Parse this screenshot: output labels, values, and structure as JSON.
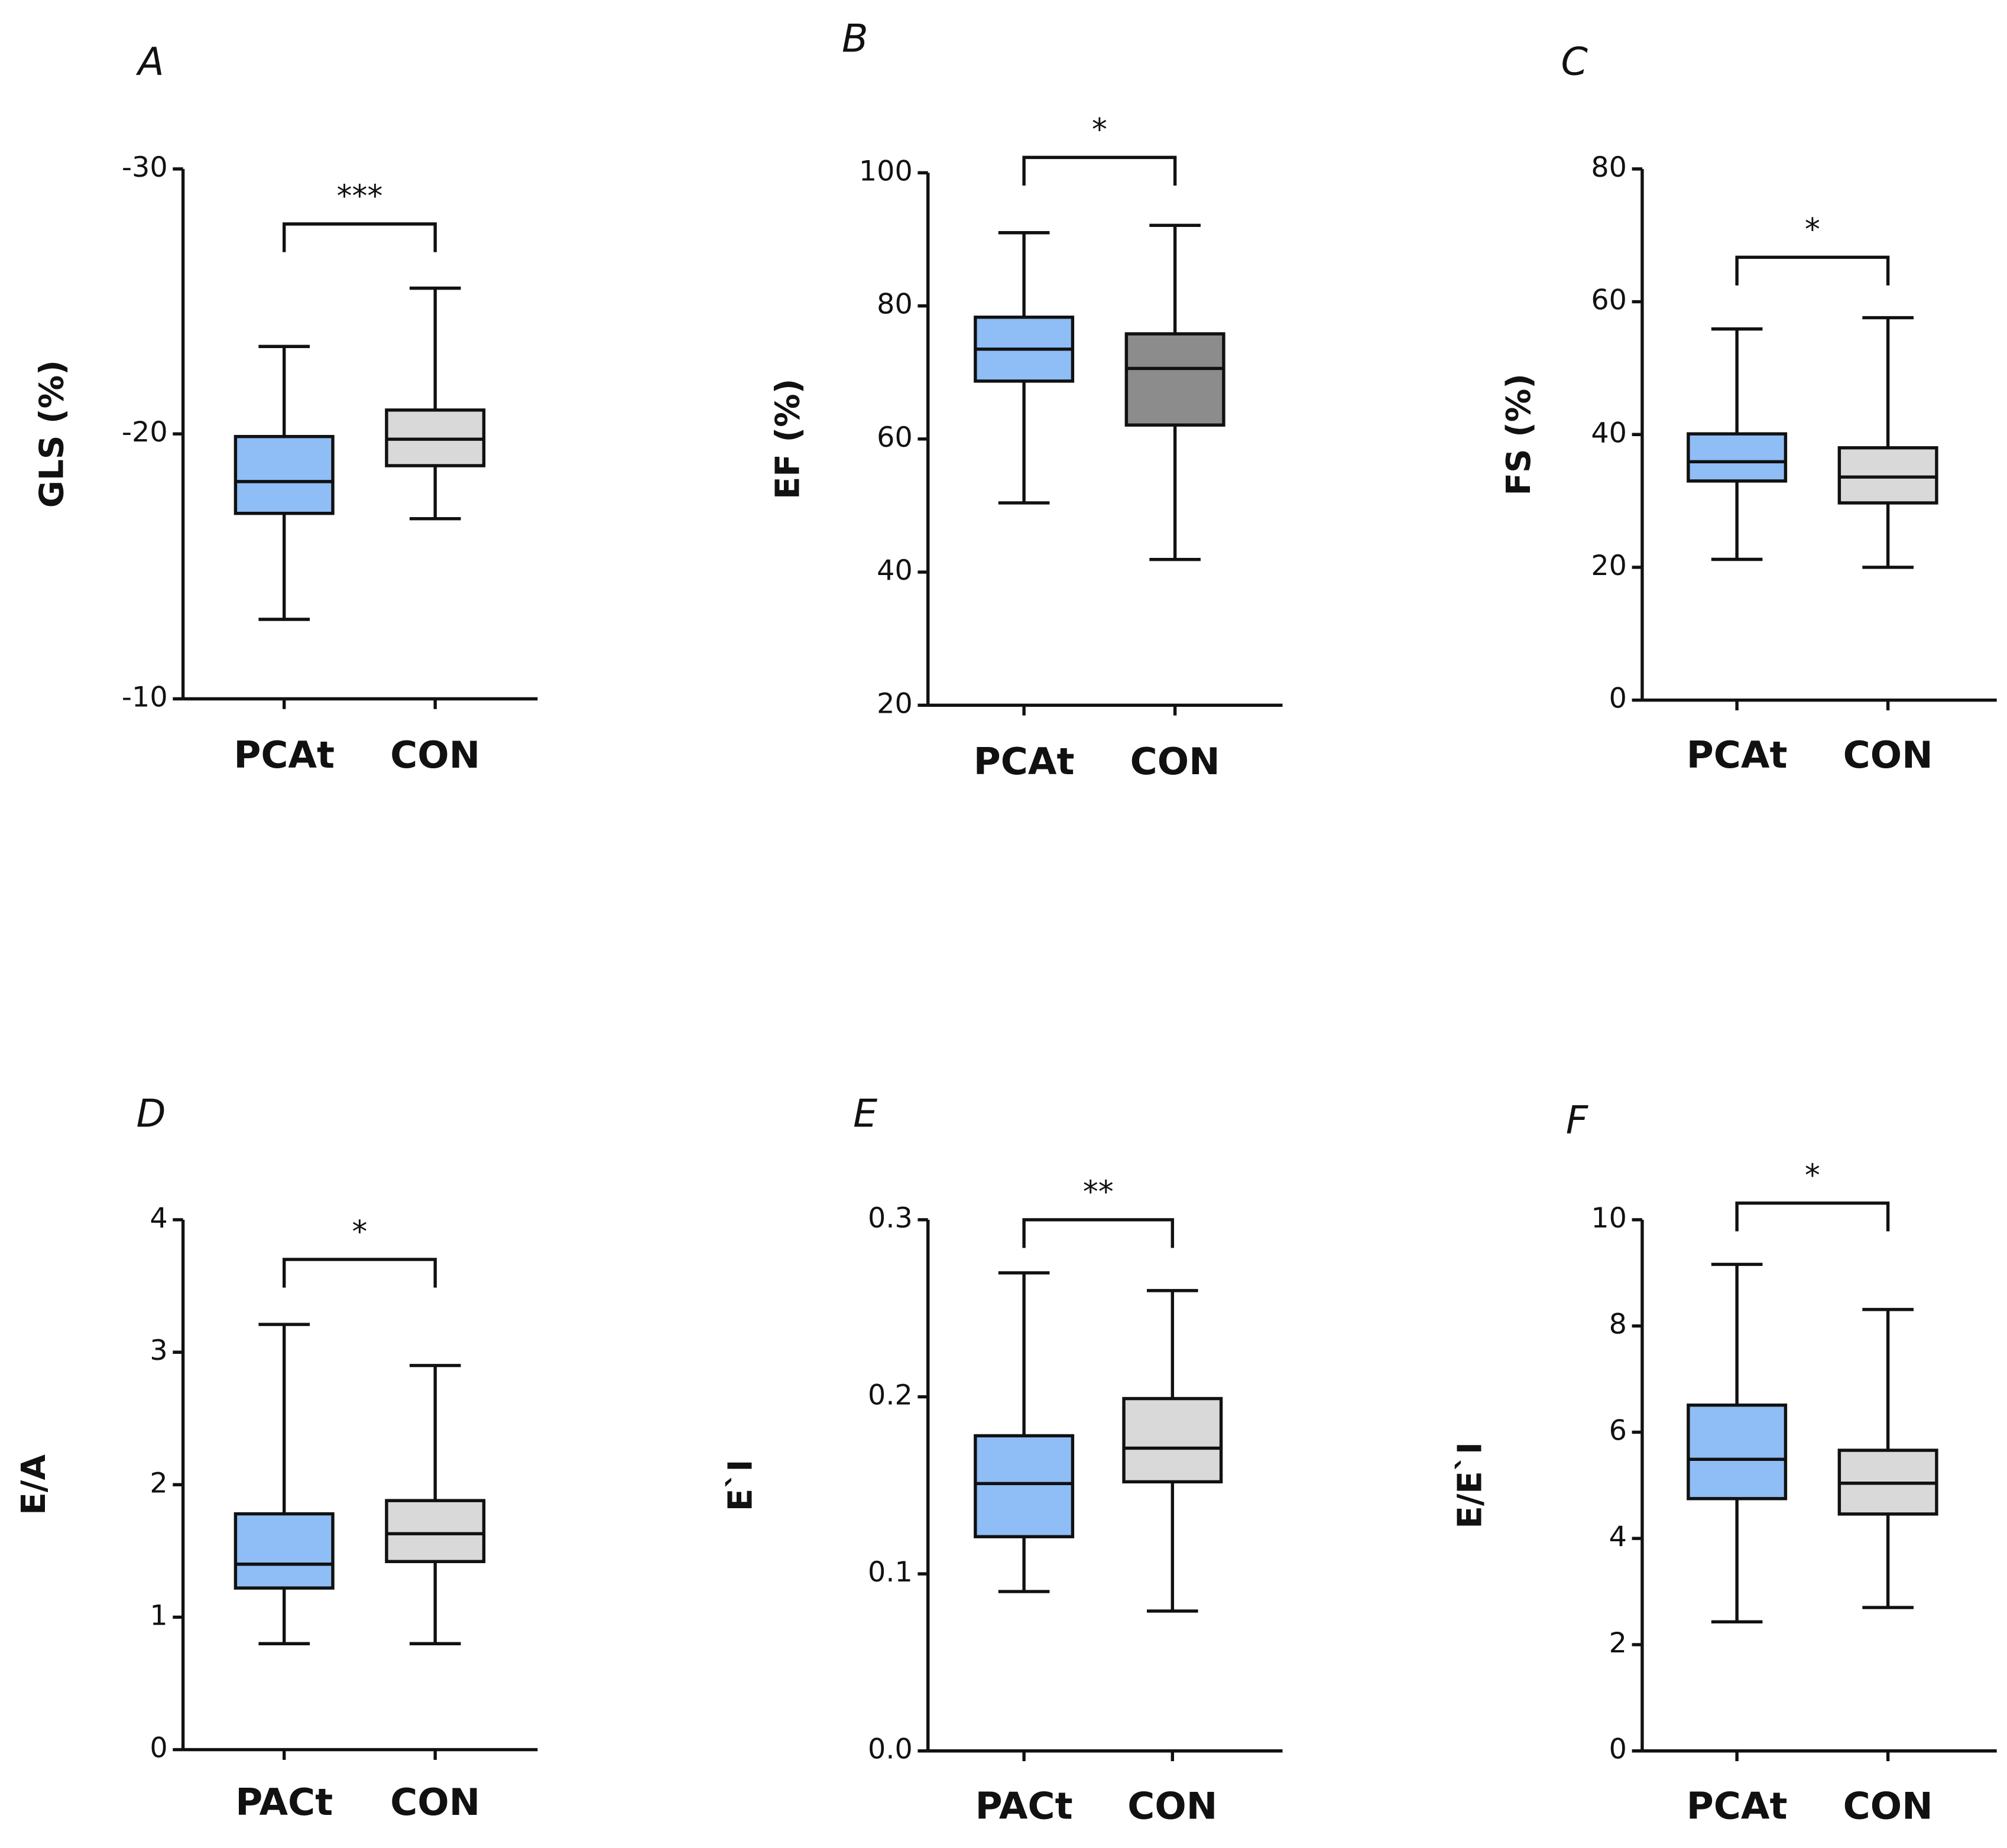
{
  "chart_data": [
    {
      "type": "box",
      "title": "A",
      "ylabel": "GLS (%)",
      "categories": [
        "PCAt",
        "CON"
      ],
      "boxes": [
        {
          "min": -23.3,
          "q1": -19.9,
          "median": -18.2,
          "q3": -17.0,
          "max": -13.0,
          "color": "#8fbdf5"
        },
        {
          "min": -25.5,
          "q1": -20.9,
          "median": -19.8,
          "q3": -18.8,
          "max": -16.8,
          "color": "#d9d9d9"
        }
      ],
      "ylim": [
        -10,
        -30
      ],
      "yticks": [
        -30,
        -20,
        -10
      ],
      "significance": "***"
    },
    {
      "type": "box",
      "title": "B",
      "ylabel": "EF (%)",
      "categories": [
        "PCAt",
        "CON"
      ],
      "boxes": [
        {
          "min": 50.4,
          "q1": 68.7,
          "median": 73.5,
          "q3": 78.3,
          "max": 91,
          "color": "#8fbdf5"
        },
        {
          "min": 41.9,
          "q1": 62.1,
          "median": 70.6,
          "q3": 75.8,
          "max": 92.1,
          "color": "#8c8c8c"
        }
      ],
      "ylim": [
        20,
        100
      ],
      "yticks": [
        20,
        40,
        60,
        80,
        100
      ],
      "significance": "*"
    },
    {
      "type": "box",
      "title": "C",
      "ylabel": "FS (%)",
      "categories": [
        "PCAt",
        "CON"
      ],
      "boxes": [
        {
          "min": 21.2,
          "q1": 33.0,
          "median": 35.9,
          "q3": 40.1,
          "max": 55.9,
          "color": "#8fbdf5"
        },
        {
          "min": 20.0,
          "q1": 29.7,
          "median": 33.6,
          "q3": 38.0,
          "max": 57.6,
          "color": "#d9d9d9"
        }
      ],
      "ylim": [
        0,
        80
      ],
      "yticks": [
        0,
        20,
        40,
        60,
        80
      ],
      "significance": "*"
    },
    {
      "type": "box",
      "title": "D",
      "ylabel": "E/A",
      "categories": [
        "PACt",
        "CON"
      ],
      "boxes": [
        {
          "min": 0.8,
          "q1": 1.22,
          "median": 1.4,
          "q3": 1.78,
          "max": 3.21,
          "color": "#8fbdf5"
        },
        {
          "min": 0.8,
          "q1": 1.42,
          "median": 1.63,
          "q3": 1.88,
          "max": 2.9,
          "color": "#d9d9d9"
        }
      ],
      "ylim": [
        0,
        4
      ],
      "yticks": [
        0,
        1,
        2,
        3,
        4
      ],
      "significance": "*"
    },
    {
      "type": "box",
      "title": "E",
      "ylabel": "E`I",
      "categories": [
        "PACt",
        "CON"
      ],
      "boxes": [
        {
          "min": 0.09,
          "q1": 0.121,
          "median": 0.151,
          "q3": 0.178,
          "max": 0.27,
          "color": "#8fbdf5"
        },
        {
          "min": 0.079,
          "q1": 0.152,
          "median": 0.171,
          "q3": 0.199,
          "max": 0.26,
          "color": "#d9d9d9"
        }
      ],
      "ylim": [
        0,
        0.3
      ],
      "yticks": [
        {
          "value": 0,
          "label": "0.0"
        },
        0.1,
        0.2,
        0.3
      ],
      "significance": "**"
    },
    {
      "type": "box",
      "title": "F",
      "ylabel": "E/E`I",
      "categories": [
        "PCAt",
        "CON"
      ],
      "boxes": [
        {
          "min": 2.43,
          "q1": 4.75,
          "median": 5.49,
          "q3": 6.51,
          "max": 9.16,
          "color": "#8fbdf5"
        },
        {
          "min": 2.7,
          "q1": 4.46,
          "median": 5.04,
          "q3": 5.66,
          "max": 8.31,
          "color": "#d9d9d9"
        }
      ],
      "ylim": [
        0,
        10
      ],
      "yticks": [
        0,
        2,
        4,
        6,
        8,
        10
      ],
      "significance": "*"
    }
  ]
}
